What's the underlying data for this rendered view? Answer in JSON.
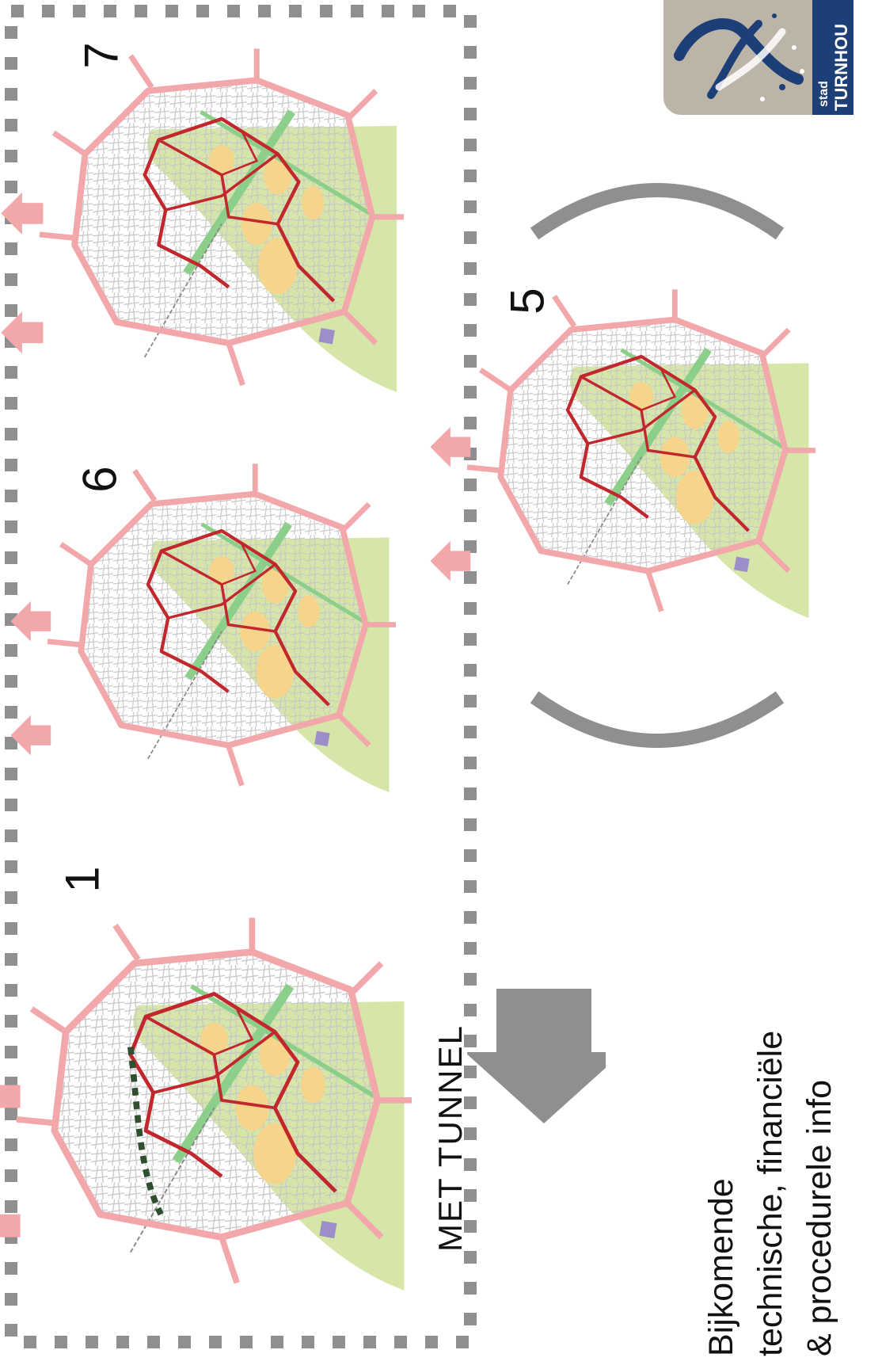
{
  "maps": [
    {
      "id": "map-1",
      "label": "1"
    },
    {
      "id": "map-6",
      "label": "6"
    },
    {
      "id": "map-7",
      "label": "7"
    },
    {
      "id": "map-5",
      "label": "5"
    }
  ],
  "frame_caption": "MET  TUNNEL",
  "info_lines": [
    "Bijkomende",
    "technische, financiële",
    "& procedurele info"
  ],
  "logo": {
    "small_text": "stad",
    "big_text": "TURNHOU"
  },
  "colors": {
    "ring_road": "#f2a7ab",
    "red_route": "#c1272d",
    "green_area": "#c8dc8a",
    "yellow_area": "#f5d48a",
    "street_grid": "#bdbdbd",
    "frame_dash": "#8f8f8f",
    "arrow_gray": "#8f8f8f",
    "logo_bg": "#bdb4a8",
    "logo_band": "#1c3f78"
  },
  "icons": [
    "arrow-right-icon",
    "bracket-left-icon",
    "bracket-right-icon",
    "stad-turnhout-logo"
  ]
}
